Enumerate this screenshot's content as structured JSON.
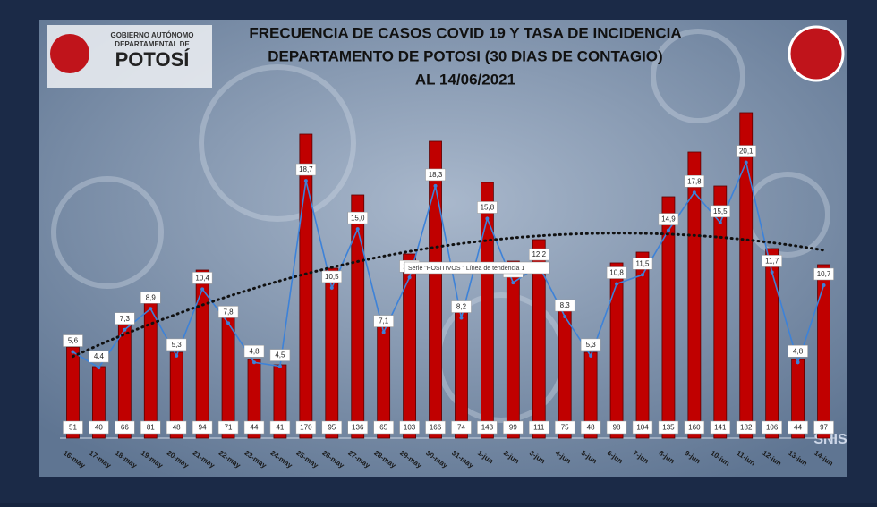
{
  "chart_data": {
    "type": "bar",
    "title": [
      "FRECUENCIA DE CASOS COVID 19 Y TASA DE INCIDENCIA",
      "DEPARTAMENTO DE POTOSI (30 DIAS DE CONTAGIO)",
      "AL 14/06/2021"
    ],
    "logo": {
      "line1": "GOBIERNO AUTÓNOMO",
      "line2": "DEPARTAMENTAL DE",
      "name": "POTOSÍ"
    },
    "watermark": "SNIS",
    "annotation": "Serie \"POSITIVOS \" Línea de tendencia 1",
    "categories": [
      "16-may",
      "17-may",
      "18-may",
      "19-may",
      "20-may",
      "21-may",
      "22-may",
      "23-may",
      "24-may",
      "25-may",
      "26-may",
      "27-may",
      "28-may",
      "29-may",
      "30-may",
      "31-may",
      "1-jun",
      "2-jun",
      "3-jun",
      "4-jun",
      "5-jun",
      "6-jun",
      "7-jun",
      "8-jun",
      "9-jun",
      "10-jun",
      "11-jun",
      "12-jun",
      "13-jun",
      "14-jun"
    ],
    "series": [
      {
        "name": "POSITIVOS",
        "type": "bar",
        "color": "#c00000",
        "values": [
          51,
          40,
          66,
          81,
          48,
          94,
          71,
          44,
          41,
          170,
          95,
          136,
          65,
          103,
          166,
          74,
          143,
          99,
          111,
          75,
          48,
          98,
          104,
          135,
          160,
          141,
          182,
          106,
          44,
          97
        ]
      },
      {
        "type": "line",
        "axis": "y2",
        "color": "#3d82d8",
        "values": [
          5.6,
          4.4,
          7.3,
          8.9,
          5.3,
          10.4,
          7.8,
          4.8,
          4.5,
          18.7,
          10.5,
          15.0,
          7.1,
          11.3,
          18.3,
          8.2,
          15.8,
          10.9,
          12.2,
          8.3,
          5.3,
          10.8,
          11.5,
          14.9,
          17.8,
          15.5,
          20.1,
          11.7,
          4.8,
          10.7
        ],
        "value_labels": [
          "5,6",
          "4,4",
          "7,3",
          "8,9",
          "5,3",
          "10,4",
          "7,8",
          "4,8",
          "4,5",
          "18,7",
          "10,5",
          "15,0",
          "7,1",
          "11,3",
          "18,3",
          "8,2",
          "15,8",
          "10,9",
          "12,2",
          "8,3",
          "5,3",
          "10,8",
          "11,5",
          "14,9",
          "17,8",
          "15,5",
          "20,1",
          "11,7",
          "4,8",
          "10,7"
        ]
      }
    ],
    "ylim": [
      0,
      190
    ],
    "y2lim": [
      -1,
      25
    ],
    "trendline": true
  }
}
